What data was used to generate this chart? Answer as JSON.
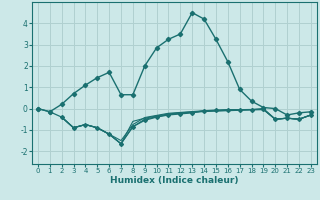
{
  "xlabel": "Humidex (Indice chaleur)",
  "bg_color": "#cce8e8",
  "grid_color": "#b0d0d0",
  "line_color": "#1a7070",
  "xlim": [
    -0.5,
    23.5
  ],
  "ylim": [
    -2.6,
    5.0
  ],
  "yticks": [
    -2,
    -1,
    0,
    1,
    2,
    3,
    4
  ],
  "xticks": [
    0,
    1,
    2,
    3,
    4,
    5,
    6,
    7,
    8,
    9,
    10,
    11,
    12,
    13,
    14,
    15,
    16,
    17,
    18,
    19,
    20,
    21,
    22,
    23
  ],
  "line1_x": [
    0,
    1,
    2,
    3,
    4,
    5,
    6,
    7,
    8,
    9,
    10,
    11,
    12,
    13,
    14,
    15,
    16,
    17,
    18,
    19,
    20,
    21,
    22,
    23
  ],
  "line1_y": [
    0.0,
    -0.15,
    0.2,
    0.7,
    1.1,
    1.45,
    1.7,
    0.65,
    0.65,
    2.0,
    2.85,
    3.25,
    3.5,
    4.5,
    4.2,
    3.25,
    2.2,
    0.9,
    0.35,
    0.05,
    0.0,
    -0.3,
    -0.2,
    -0.15
  ],
  "line2_x": [
    0,
    1,
    2,
    3,
    4,
    5,
    6,
    7,
    8,
    9,
    10,
    11,
    12,
    13,
    14,
    15,
    16,
    17,
    18,
    19,
    20,
    21,
    22,
    23
  ],
  "line2_y": [
    0.0,
    -0.15,
    -0.4,
    -0.9,
    -0.75,
    -0.9,
    -1.2,
    -1.65,
    -0.85,
    -0.55,
    -0.4,
    -0.3,
    -0.25,
    -0.2,
    -0.1,
    -0.08,
    -0.05,
    -0.05,
    -0.05,
    0.0,
    -0.5,
    -0.45,
    -0.5,
    -0.3
  ],
  "line3_x": [
    2,
    3,
    4,
    5,
    6,
    7,
    8,
    9,
    10,
    11,
    12,
    13,
    14,
    15,
    16,
    17,
    18,
    19,
    20,
    21,
    22,
    23
  ],
  "line3_y": [
    -0.4,
    -0.9,
    -0.75,
    -0.9,
    -1.2,
    -1.65,
    -0.85,
    -0.5,
    -0.38,
    -0.28,
    -0.22,
    -0.18,
    -0.14,
    -0.12,
    -0.1,
    -0.08,
    -0.06,
    -0.05,
    -0.5,
    -0.45,
    -0.5,
    -0.3
  ],
  "line4_x": [
    2,
    3,
    4,
    5,
    6,
    7,
    8,
    9,
    10,
    11,
    12,
    13,
    14,
    15,
    16,
    17,
    18,
    19,
    20,
    21,
    22,
    23
  ],
  "line4_y": [
    -0.4,
    -0.9,
    -0.75,
    -0.9,
    -1.2,
    -1.65,
    -0.6,
    -0.45,
    -0.35,
    -0.25,
    -0.2,
    -0.16,
    -0.12,
    -0.1,
    -0.08,
    -0.06,
    -0.05,
    -0.04,
    -0.5,
    -0.45,
    -0.5,
    -0.3
  ],
  "line5_x": [
    2,
    3,
    4,
    5,
    6,
    7,
    8,
    9,
    10,
    11,
    12,
    13,
    14,
    15,
    16,
    17,
    18,
    19,
    20,
    21,
    22,
    23
  ],
  "line5_y": [
    -0.4,
    -0.9,
    -0.75,
    -0.9,
    -1.2,
    -1.5,
    -0.75,
    -0.42,
    -0.32,
    -0.22,
    -0.18,
    -0.14,
    -0.1,
    -0.08,
    -0.06,
    -0.05,
    -0.04,
    -0.03,
    -0.5,
    -0.45,
    -0.5,
    -0.3
  ]
}
